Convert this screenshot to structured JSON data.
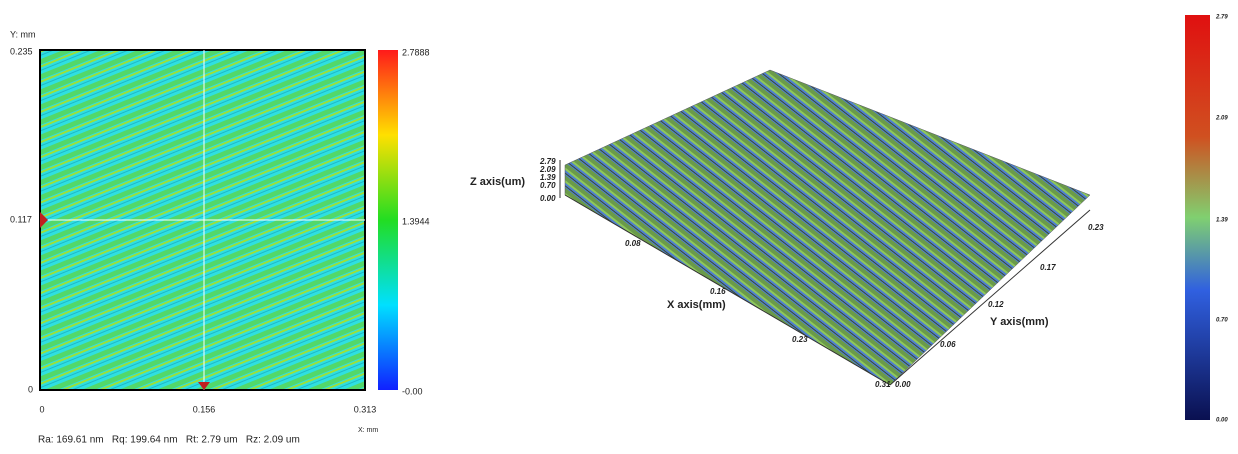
{
  "map2d": {
    "y_axis_label": "Y: mm",
    "x_axis_label": "X: mm",
    "y_ticks": [
      "0.235",
      "0.117",
      "0"
    ],
    "x_ticks": [
      "0",
      "0.156",
      "0.313"
    ],
    "colorbar_ticks": [
      "2.7888",
      "1.3944",
      "-0.00"
    ],
    "stats": "Ra: 169.61 nm   Rq: 199.64 nm   Rt: 2.79 um   Rz: 2.09 um"
  },
  "surface3d": {
    "z_axis_label": "Z axis(um)",
    "z_ticks": [
      "2.79",
      "2.09",
      "1.39",
      "0.70",
      "0.00"
    ],
    "x_axis_label": "X axis(mm)",
    "x_ticks": [
      "0.08",
      "0.16",
      "0.23",
      "0.31"
    ],
    "y_axis_label": "Y axis(mm)",
    "y_ticks": [
      "0.00",
      "0.06",
      "0.12",
      "0.17",
      "0.23"
    ],
    "colorbar_ticks": [
      "2.79",
      "2.09",
      "1.39",
      "0.70",
      "0.00"
    ]
  }
}
